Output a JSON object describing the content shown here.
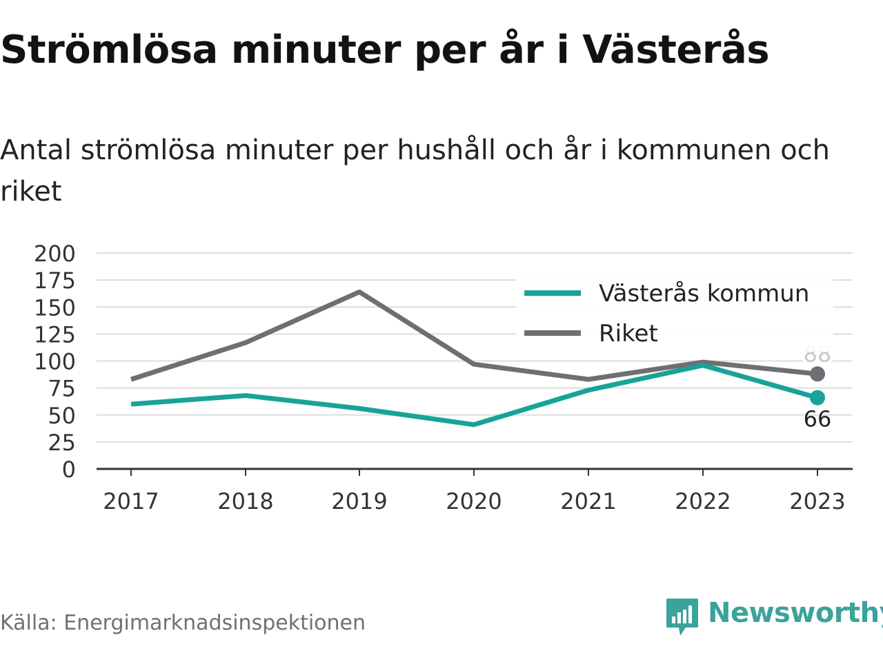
{
  "header": {
    "title": "Strömlösa minuter per år i Västerås",
    "subtitle": "Antal strömlösa minuter per hushåll och år i kommunen och riket"
  },
  "footer": {
    "source": "Källa: Energimarknadsinspektionen",
    "brand": "Newsworthy",
    "brand_icon": "newsworthy-logo-icon"
  },
  "colors": {
    "municipality": "#17a398",
    "country": "#6e6e74",
    "grid": "#dddddd",
    "axis": "#333333",
    "brand": "#3aa39a"
  },
  "chart_data": {
    "type": "line",
    "x": [
      2017,
      2018,
      2019,
      2020,
      2021,
      2022,
      2023
    ],
    "ylim": [
      0,
      200
    ],
    "yticks": [
      0,
      25,
      50,
      75,
      100,
      125,
      150,
      175,
      200
    ],
    "grid": true,
    "legend_position": "top-right",
    "series": [
      {
        "name": "Västerås kommun",
        "color": "#17a398",
        "values": [
          60,
          68,
          56,
          41,
          73,
          96,
          66
        ],
        "end_label": "66"
      },
      {
        "name": "Riket",
        "color": "#6e6e74",
        "values": [
          83,
          117,
          164,
          97,
          83,
          99,
          88
        ],
        "end_label": "88"
      }
    ]
  }
}
